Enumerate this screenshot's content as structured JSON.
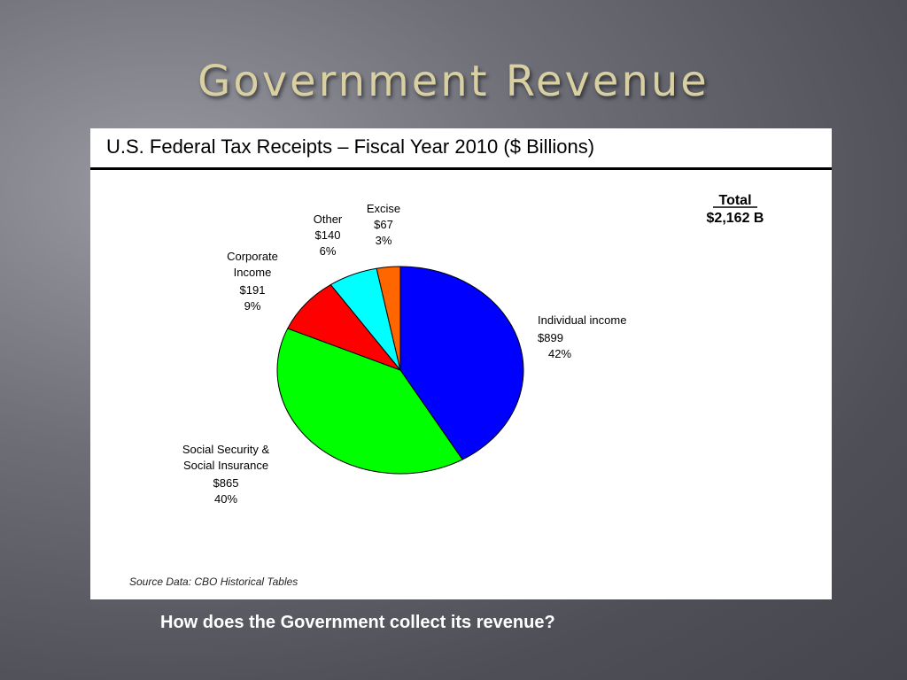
{
  "slide": {
    "title": "Government Revenue",
    "caption": "How does the Government collect its revenue?"
  },
  "chart_data": {
    "type": "pie",
    "title": "U.S. Federal Tax Receipts – Fiscal Year 2010 ($ Billions)",
    "total": {
      "label": "Total",
      "value": "$2,162 B"
    },
    "source": "Source Data: CBO Historical Tables",
    "start_angle_deg": 0,
    "direction": "clockwise",
    "slices": [
      {
        "name_lines": [
          "Individual income"
        ],
        "amount": "$899",
        "percent": "42%",
        "value": 899,
        "color": "#0000ff"
      },
      {
        "name_lines": [
          "Social Security &",
          "Social Insurance"
        ],
        "amount": "$865",
        "percent": "40%",
        "value": 865,
        "color": "#00ff00"
      },
      {
        "name_lines": [
          "Corporate",
          "Income"
        ],
        "amount": "$191",
        "percent": "9%",
        "value": 191,
        "color": "#ff0000"
      },
      {
        "name_lines": [
          "Other"
        ],
        "amount": "$140",
        "percent": "6%",
        "value": 140,
        "color": "#00ffff"
      },
      {
        "name_lines": [
          "Excise"
        ],
        "amount": "$67",
        "percent": "3%",
        "value": 67,
        "color": "#ff6600"
      }
    ]
  }
}
